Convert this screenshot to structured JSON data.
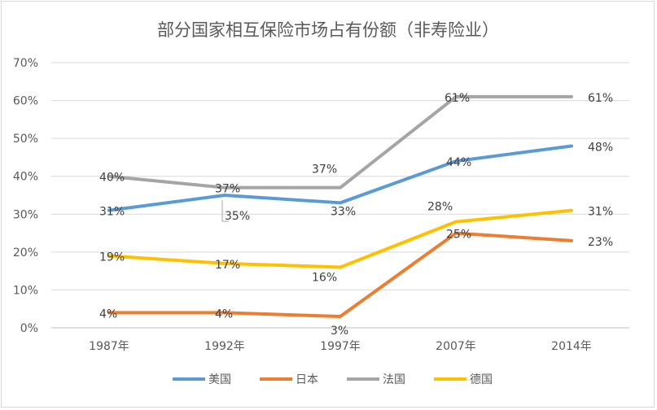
{
  "chart_data": {
    "type": "line",
    "title": "部分国家相互保险市场占有份额（非寿险业）",
    "categories": [
      "1987年",
      "1992年",
      "1997年",
      "2007年",
      "2014年"
    ],
    "ylim": [
      0,
      70
    ],
    "y_ticks": [
      "0%",
      "10%",
      "20%",
      "30%",
      "40%",
      "50%",
      "60%",
      "70%"
    ],
    "grid": true,
    "legend_position": "bottom",
    "series": [
      {
        "name": "美国",
        "color": "#5b9bd5",
        "values": [
          31,
          35,
          33,
          44,
          48
        ],
        "labels": [
          "31%",
          "35%",
          "33%",
          "44%",
          "48%"
        ]
      },
      {
        "name": "日本",
        "color": "#ed7d31",
        "values": [
          4,
          4,
          3,
          25,
          23
        ],
        "labels": [
          "4%",
          "4%",
          "3%",
          "25%",
          "23%"
        ]
      },
      {
        "name": "法国",
        "color": "#a5a5a5",
        "values": [
          40,
          37,
          37,
          61,
          61
        ],
        "labels": [
          "40%",
          "37%",
          "37%",
          "61%",
          "61%"
        ]
      },
      {
        "name": "德国",
        "color": "#ffc000",
        "values": [
          19,
          17,
          16,
          28,
          31
        ],
        "labels": [
          "19%",
          "17%",
          "16%",
          "28%",
          "31%"
        ]
      }
    ]
  }
}
